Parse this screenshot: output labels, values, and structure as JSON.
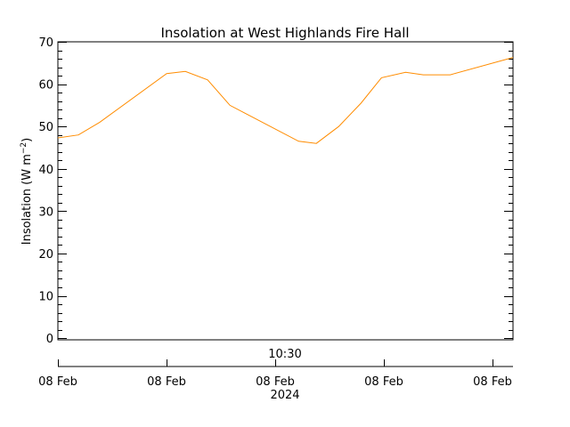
{
  "chart_data": {
    "type": "line",
    "title": "Insolation at West Highlands Fire Hall",
    "xlabel": "2024",
    "ylabel": "Insolation (W m^-2)",
    "ylabel_parts": {
      "main": "Insolation (W m",
      "sup": "−2",
      "close": ")"
    },
    "ylim": [
      -0.4,
      70
    ],
    "y_ticks": [
      0,
      10,
      20,
      30,
      40,
      50,
      60,
      70
    ],
    "y_minor_step": 2,
    "x_tick_labels": [
      "08 Feb",
      "08 Feb",
      "08 Feb",
      "08 Feb",
      "08 Feb"
    ],
    "x_center_time_label": "10:30",
    "x_year_label": "2024",
    "grid": false,
    "legend": "none",
    "line_color": "#ff8c00",
    "series": [
      {
        "name": "Insolation",
        "x": [
          0.0,
          0.045,
          0.092,
          0.239,
          0.28,
          0.329,
          0.378,
          0.529,
          0.568,
          0.617,
          0.666,
          0.711,
          0.764,
          0.803,
          0.862,
          1.0
        ],
        "values": [
          47.3,
          48.0,
          51.0,
          62.5,
          63.0,
          61.0,
          55.0,
          46.5,
          46.0,
          50.0,
          55.5,
          61.5,
          62.8,
          62.2,
          62.2,
          66.3
        ]
      }
    ]
  }
}
